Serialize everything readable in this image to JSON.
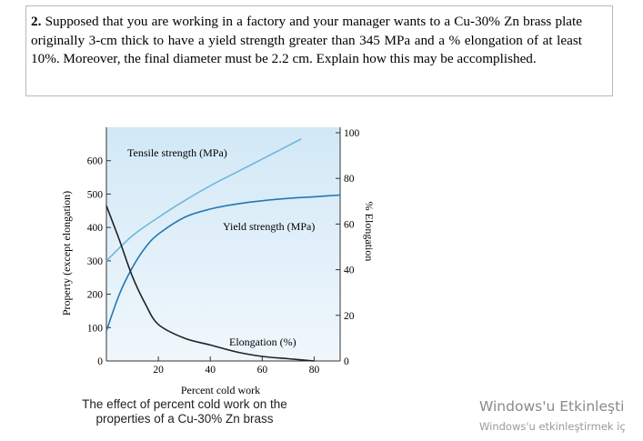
{
  "question": {
    "number": "2.",
    "text": "Supposed that you are working in a factory and your manager wants to a Cu-30% Zn brass plate originally 3-cm thick to have a yield strength greater than 345 MPa and a % elongation of at least 10%. Moreover, the final diameter must be 2.2 cm. Explain how this may be accomplished."
  },
  "chart_data": {
    "type": "line",
    "xlabel": "Percent cold work",
    "ylabel_left": "Property (except elongation)",
    "ylabel_right": "% Elongation",
    "x_ticks": [
      "20",
      "40",
      "60",
      "80"
    ],
    "y_left_ticks": [
      "0",
      "100",
      "200",
      "300",
      "400",
      "500",
      "600"
    ],
    "y_right_ticks": [
      "0",
      "20",
      "40",
      "60",
      "80",
      "100"
    ],
    "xlim": [
      0,
      90
    ],
    "ylim_left": [
      0,
      700
    ],
    "ylim_right": [
      0,
      100
    ],
    "series": [
      {
        "name": "Tensile strength (MPa)",
        "axis": "left",
        "color": "#6fb7dd",
        "x": [
          0,
          10,
          20,
          30,
          40,
          50,
          60,
          70,
          75
        ],
        "y": [
          300,
          375,
          430,
          480,
          525,
          565,
          605,
          645,
          665
        ]
      },
      {
        "name": "Yield strength (MPa)",
        "axis": "left",
        "color": "#2478b5",
        "x": [
          0,
          5,
          10,
          15,
          20,
          30,
          40,
          50,
          60,
          70,
          80,
          90
        ],
        "y": [
          90,
          200,
          280,
          340,
          380,
          430,
          455,
          470,
          480,
          487,
          492,
          497
        ]
      },
      {
        "name": "Elongation (%)",
        "axis": "right",
        "color": "#222222",
        "x": [
          0,
          5,
          10,
          15,
          20,
          30,
          40,
          50,
          60,
          70,
          80
        ],
        "y": [
          68,
          53,
          37,
          25,
          16,
          10,
          7,
          4,
          2,
          1,
          0
        ]
      }
    ],
    "labels": {
      "tensile": "Tensile strength (MPa)",
      "yield": "Yield strength (MPa)",
      "elongation": "Elongation (%)"
    }
  },
  "caption": {
    "line1": "The effect of percent cold work on the",
    "line2": "properties of a Cu-30% Zn brass"
  },
  "watermark": {
    "title": "Windows'u Etkinleşti",
    "subtitle": "Windows'u etkinleştirmek iç"
  }
}
